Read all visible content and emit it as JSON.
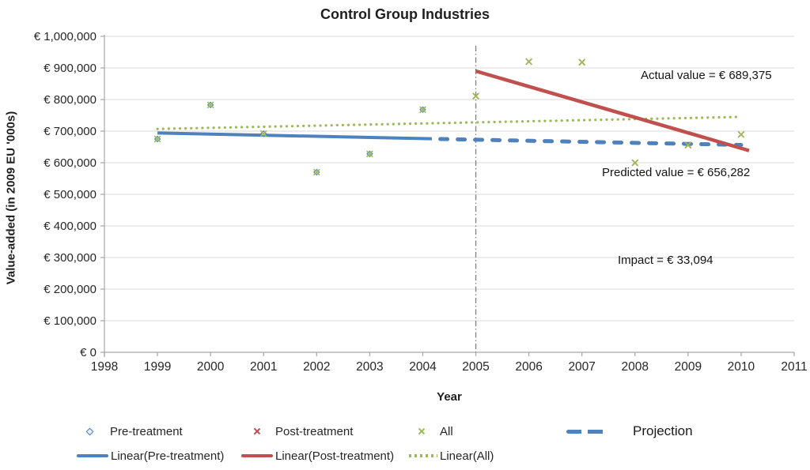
{
  "chart_data": {
    "type": "scatter",
    "title": "Control Group Industries",
    "xlabel": "Year",
    "ylabel": "Value-added (in 2009 EU '000s)",
    "xlim": [
      1998,
      2011
    ],
    "ylim": [
      0,
      1000000
    ],
    "grid": "horizontal",
    "legend_position": "bottom",
    "x_tick_labels": [
      "1998",
      "1999",
      "2000",
      "2001",
      "2002",
      "2003",
      "2004",
      "2005",
      "2006",
      "2007",
      "2008",
      "2009",
      "2010",
      "2011"
    ],
    "y_ticks": [
      {
        "value": 0,
        "label": "€ 0"
      },
      {
        "value": 100000,
        "label": "€ 100,000"
      },
      {
        "value": 200000,
        "label": "€ 200,000"
      },
      {
        "value": 300000,
        "label": "€ 300,000"
      },
      {
        "value": 400000,
        "label": "€ 400,000"
      },
      {
        "value": 500000,
        "label": "€ 500,000"
      },
      {
        "value": 600000,
        "label": "€ 600,000"
      },
      {
        "value": 700000,
        "label": "€ 700,000"
      },
      {
        "value": 800000,
        "label": "€ 800,000"
      },
      {
        "value": 900000,
        "label": "€ 900,000"
      },
      {
        "value": 1000000,
        "label": "€ 1,000,000"
      }
    ],
    "colors": {
      "blue": "#4F81BD",
      "red": "#C0504D",
      "olive": "#9BBB59",
      "gridline": "#D9D9D9",
      "axis": "#A6A6A6",
      "cutoff": "#808080",
      "text": "#262626"
    },
    "cutoff_line": {
      "x": 2005,
      "style": "dashdot",
      "color": "#808080",
      "top_value": 970000
    },
    "series": [
      {
        "name": "Linear(All)",
        "kind": "line",
        "style": "dotted",
        "color": "#9BBB59",
        "width": 3.2,
        "points": [
          [
            1999,
            707000
          ],
          [
            2010,
            745000
          ]
        ]
      },
      {
        "name": "Linear(Pre-treatment)",
        "kind": "line",
        "style": "solid",
        "color": "#4F81BD",
        "width": 4,
        "points": [
          [
            1999,
            694000
          ],
          [
            2004.17,
            676000
          ]
        ]
      },
      {
        "name": "Projection",
        "kind": "line",
        "style": "dashed",
        "color": "#4F81BD",
        "width": 5,
        "points": [
          [
            2004.33,
            675000
          ],
          [
            2010,
            656282
          ]
        ]
      },
      {
        "name": "Linear(Post-treatment)",
        "kind": "line",
        "style": "solid",
        "color": "#C0504D",
        "width": 4.5,
        "points": [
          [
            2005,
            890000
          ],
          [
            2010.15,
            638500
          ]
        ]
      },
      {
        "name": "Pre-treatment",
        "kind": "scatter",
        "marker": "diamond",
        "color": "#4F81BD",
        "x": [
          1999,
          2000,
          2001,
          2002,
          2003,
          2004
        ],
        "y": [
          675000,
          783000,
          692000,
          570000,
          628000,
          768000
        ]
      },
      {
        "name": "Post-treatment",
        "kind": "scatter",
        "marker": "x",
        "color": "#C0504D",
        "x": [
          2005,
          2006,
          2007,
          2008,
          2009,
          2010
        ],
        "y": [
          811000,
          920000,
          918000,
          600000,
          656000,
          689375
        ]
      },
      {
        "name": "All",
        "kind": "scatter",
        "marker": "x",
        "color": "#9BBB59",
        "x": [
          1999,
          2000,
          2001,
          2002,
          2003,
          2004,
          2005,
          2006,
          2007,
          2008,
          2009,
          2010
        ],
        "y": [
          675000,
          783000,
          692000,
          570000,
          628000,
          768000,
          811000,
          920000,
          918000,
          600000,
          656000,
          689375
        ]
      }
    ],
    "annotations": {
      "actual": {
        "text": "Actual value = € 689,375"
      },
      "predicted": {
        "text": "Predicted value = € 656,282"
      },
      "impact": {
        "text": "Impact = € 33,094"
      }
    },
    "legend": {
      "row1": [
        {
          "label": "Pre-treatment",
          "swatch": "diamond",
          "color": "#4F81BD"
        },
        {
          "label": "Post-treatment",
          "swatch": "x",
          "color": "#C0504D"
        },
        {
          "label": "All",
          "swatch": "x",
          "color": "#9BBB59"
        },
        {
          "label": "Projection",
          "swatch": "dashes",
          "color": "#4F81BD"
        }
      ],
      "row2": [
        {
          "label": "Linear(Pre-treatment)",
          "swatch": "line",
          "color": "#4F81BD"
        },
        {
          "label": "Linear(Post-treatment)",
          "swatch": "line",
          "color": "#C0504D"
        },
        {
          "label": "Linear(All)",
          "swatch": "dots",
          "color": "#9BBB59"
        }
      ]
    }
  }
}
